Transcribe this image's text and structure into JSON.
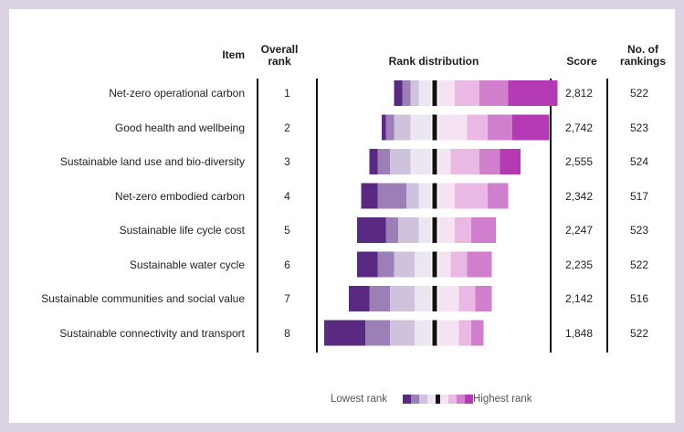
{
  "chart_data": {
    "type": "table",
    "headers": {
      "item": "Item",
      "overall_rank": "Overall rank",
      "rank_distribution": "Rank distribution",
      "score": "Score",
      "rankings": "No. of rankings"
    },
    "rank_levels": [
      8,
      7,
      6,
      5,
      4,
      3,
      2,
      1
    ],
    "level_colors": [
      "#5a2a82",
      "#9b7fb6",
      "#cfc2dd",
      "#ece6f2",
      "#f5e3f3",
      "#e9b9e3",
      "#cf7fcb",
      "#b43ab4"
    ],
    "rows": [
      {
        "item": "Net-zero operational carbon",
        "rank": "1",
        "score": "2,812",
        "rankings": "522",
        "distribution": [
          2,
          2,
          2,
          3,
          4,
          6,
          7,
          12
        ]
      },
      {
        "item": "Good health and wellbeing",
        "rank": "2",
        "score": "2,742",
        "rankings": "523",
        "distribution": [
          1,
          2,
          4,
          5,
          7,
          5,
          6,
          9
        ]
      },
      {
        "item": "Sustainable land use and bio-diversity",
        "rank": "3",
        "score": "2,555",
        "rankings": "524",
        "distribution": [
          2,
          3,
          5,
          5,
          3,
          7,
          5,
          5
        ]
      },
      {
        "item": "Net-zero embodied carbon",
        "rank": "4",
        "score": "2,342",
        "rankings": "517",
        "distribution": [
          4,
          7,
          3,
          3,
          4,
          8,
          5,
          0
        ]
      },
      {
        "item": "Sustainable life cycle cost",
        "rank": "5",
        "score": "2,247",
        "rankings": "523",
        "distribution": [
          7,
          3,
          5,
          3,
          4,
          4,
          6,
          0
        ]
      },
      {
        "item": "Sustainable water cycle",
        "rank": "6",
        "score": "2,235",
        "rankings": "522",
        "distribution": [
          5,
          4,
          5,
          4,
          3,
          4,
          6,
          0
        ]
      },
      {
        "item": "Sustainable communities and social value",
        "rank": "7",
        "score": "2,142",
        "rankings": "516",
        "distribution": [
          5,
          5,
          6,
          4,
          5,
          4,
          4,
          0
        ]
      },
      {
        "item": "Sustainable connectivity and transport",
        "rank": "8",
        "score": "1,848",
        "rankings": "522",
        "distribution": [
          10,
          6,
          6,
          4,
          5,
          3,
          3,
          0
        ]
      }
    ],
    "legend": {
      "low_label": "Lowest rank",
      "high_label": "Highest rank"
    }
  }
}
